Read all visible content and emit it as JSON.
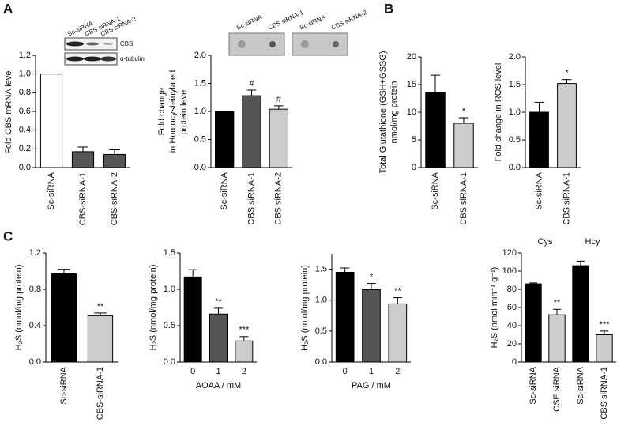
{
  "panels": [
    "A",
    "B",
    "C"
  ],
  "chart_data": [
    {
      "type": "bar",
      "ylabel": [
        "Fold CBS mRNA level"
      ],
      "categories": [
        "Sc-siRNA",
        "CBS-siRNA-1",
        "CBS-siRNA-2"
      ],
      "values": [
        1.0,
        0.17,
        0.14
      ],
      "errors": [
        0,
        0.05,
        0.05
      ],
      "colors": [
        "#ffffff",
        "#555555",
        "#555555"
      ],
      "ylim": [
        0,
        1.2
      ],
      "yticks": [
        {
          "value": 0,
          "label": "0.0"
        },
        {
          "value": 0.2,
          "label": "0.2"
        },
        {
          "value": 0.4,
          "label": "0.4"
        },
        {
          "value": 0.6,
          "label": "0.6"
        },
        {
          "value": 0.8,
          "label": "0.8"
        },
        {
          "value": 1.0,
          "label": "1.0"
        },
        {
          "value": 1.2,
          "label": "1.2"
        }
      ],
      "blot_lanes": [
        "Sc-siRNA",
        "CBS siRNA-1",
        "CBS siRNA-2"
      ],
      "blot_rows": [
        "CBS",
        "α-tubulin"
      ]
    },
    {
      "type": "bar",
      "ylabel": [
        "Fold change",
        "in Homocysteinylated",
        "protein level"
      ],
      "categories": [
        "Sc-siRNA",
        "CBS siRNA-1",
        "CBS siRNA-2"
      ],
      "values": [
        1.0,
        1.28,
        1.04
      ],
      "errors": [
        0,
        0.1,
        0.06
      ],
      "annotations": [
        null,
        "#",
        "#"
      ],
      "colors": [
        "#000000",
        "#555555",
        "#cccccc"
      ],
      "ylim": [
        0,
        2.0
      ],
      "yticks": [
        {
          "value": 0,
          "label": "0.0"
        },
        {
          "value": 0.5,
          "label": "0.5"
        },
        {
          "value": 1.0,
          "label": "1.0"
        },
        {
          "value": 1.5,
          "label": "1.5"
        },
        {
          "value": 2.0,
          "label": "2.0"
        }
      ],
      "blot_lanes": [
        "Sc-siRNA",
        "CBS siRNA-1",
        "Sc-siRNA",
        "CBS siRNA-2"
      ]
    },
    {
      "type": "bar",
      "ylabel": [
        "Total Glutathione (GSH+GSSG)",
        "nmol/mg protein"
      ],
      "categories": [
        "Sc-siRNA",
        "CBS siRNA-1"
      ],
      "values": [
        13.5,
        8.0
      ],
      "errors": [
        3.2,
        1.0
      ],
      "annotations": [
        null,
        "*"
      ],
      "colors": [
        "#000000",
        "#cccccc"
      ],
      "ylim": [
        0,
        20
      ],
      "yticks": [
        0,
        5,
        10,
        15,
        20
      ]
    },
    {
      "type": "bar",
      "ylabel": [
        "Fold change in ROS level"
      ],
      "categories": [
        "Sc-siRNA",
        "CBS siRNA-1"
      ],
      "values": [
        1.0,
        1.52
      ],
      "errors": [
        0.18,
        0.07
      ],
      "annotations": [
        null,
        "*"
      ],
      "colors": [
        "#000000",
        "#cccccc"
      ],
      "ylim": [
        0,
        2.0
      ],
      "yticks": [
        {
          "value": 0,
          "label": "0.0"
        },
        {
          "value": 0.5,
          "label": "0.5"
        },
        {
          "value": 1.0,
          "label": "1.0"
        },
        {
          "value": 1.5,
          "label": "1.5"
        },
        {
          "value": 2.0,
          "label": "2.0"
        }
      ]
    },
    {
      "type": "bar",
      "ylabel": [
        "H₂S (nmol/mg protein)"
      ],
      "categories": [
        "Sc-siRNA",
        "CBS-siRNA-1"
      ],
      "values": [
        0.97,
        0.51
      ],
      "errors": [
        0.05,
        0.03
      ],
      "annotations": [
        null,
        "**"
      ],
      "colors": [
        "#000000",
        "#cccccc"
      ],
      "ylim": [
        0,
        1.2
      ],
      "yticks": [
        {
          "value": 0,
          "label": "0.0"
        },
        {
          "value": 0.4,
          "label": "0.4"
        },
        {
          "value": 0.8,
          "label": "0.8"
        },
        {
          "value": 1.2,
          "label": "1.2"
        }
      ]
    },
    {
      "type": "bar",
      "ylabel": [
        "H₂S (nmol/mg protein)"
      ],
      "xlabel": "AOAA / mM",
      "categories": [
        "0",
        "1",
        "2"
      ],
      "values": [
        1.17,
        0.66,
        0.29
      ],
      "errors": [
        0.1,
        0.08,
        0.06
      ],
      "annotations": [
        null,
        "**",
        "***"
      ],
      "colors": [
        "#000000",
        "#555555",
        "#cccccc"
      ],
      "ylim": [
        0,
        1.5
      ],
      "yticks": [
        {
          "value": 0,
          "label": "0.0"
        },
        {
          "value": 0.5,
          "label": "0.5"
        },
        {
          "value": 1.0,
          "label": "1.0"
        },
        {
          "value": 1.5,
          "label": "1.5"
        }
      ]
    },
    {
      "type": "bar",
      "ylabel": [
        "H₂S (nmol/mg protein)"
      ],
      "xlabel": "PAG / mM",
      "categories": [
        "0",
        "1",
        "2"
      ],
      "values": [
        1.45,
        1.17,
        0.94
      ],
      "errors": [
        0.07,
        0.1,
        0.1
      ],
      "annotations": [
        null,
        "*",
        "**"
      ],
      "colors": [
        "#000000",
        "#555555",
        "#cccccc"
      ],
      "ylim": [
        0,
        1.75
      ],
      "yticks": [
        {
          "value": 0,
          "label": "0.0"
        },
        {
          "value": 0.5,
          "label": "0.5"
        },
        {
          "value": 1.0,
          "label": "1.0"
        },
        {
          "value": 1.5,
          "label": "1.5"
        }
      ]
    },
    {
      "type": "bar",
      "ylabel": [
        "H₂S (nmol min⁻¹ g⁻¹)"
      ],
      "groups": [
        "Cys",
        "Hcy"
      ],
      "categories": [
        "Sc-siRNA",
        "CSE siRNA",
        "Sc-siRNA",
        "CBS siRNA-1"
      ],
      "values": [
        86,
        52,
        106,
        30
      ],
      "errors": [
        1,
        6,
        5,
        4
      ],
      "annotations": [
        null,
        "**",
        null,
        "***"
      ],
      "colors": [
        "#000000",
        "#cccccc",
        "#000000",
        "#cccccc"
      ],
      "ylim": [
        0,
        120
      ],
      "yticks": [
        0,
        20,
        40,
        60,
        80,
        100,
        120
      ]
    }
  ]
}
